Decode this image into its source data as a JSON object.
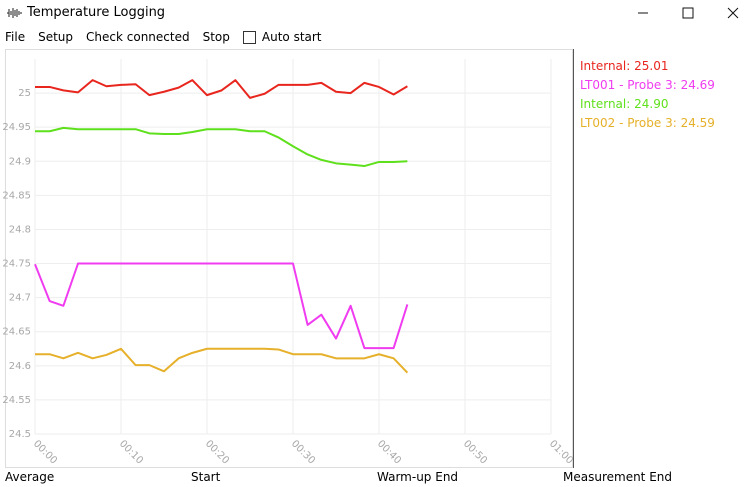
{
  "window": {
    "title": "Temperature Logging"
  },
  "menu": [
    "File",
    "Setup",
    "Check connected",
    "Stop"
  ],
  "auto_start": "Auto start",
  "chart_data": {
    "type": "line",
    "x": [
      0,
      1.7,
      3.3,
      5,
      6.7,
      8.3,
      10,
      11.7,
      13.3,
      15,
      16.7,
      18.3,
      20,
      21.7,
      23.3,
      25,
      26.7,
      28.3,
      30,
      31.7,
      33.3,
      35,
      36.7,
      38.3,
      40,
      41.7,
      43.3
    ],
    "series": [
      {
        "name": "Internal: 25.01",
        "color": "#e8261e",
        "values": [
          25.009,
          25.009,
          25.004,
          25.001,
          25.019,
          25.01,
          25.012,
          25.013,
          24.997,
          25.002,
          25.008,
          25.019,
          24.997,
          25.004,
          25.019,
          24.993,
          24.999,
          25.012,
          25.012,
          25.012,
          25.015,
          25.002,
          25.0,
          25.015,
          25.009,
          24.998,
          25.01
        ]
      },
      {
        "name": "LT001 - Probe 3: 24.69",
        "color": "#f03cf0",
        "values": [
          24.749,
          24.695,
          24.688,
          24.75,
          24.75,
          24.75,
          24.75,
          24.75,
          24.75,
          24.75,
          24.75,
          24.75,
          24.75,
          24.75,
          24.75,
          24.75,
          24.75,
          24.75,
          24.75,
          24.66,
          24.675,
          24.64,
          24.688,
          24.626,
          24.626,
          24.626,
          24.69
        ]
      },
      {
        "name": "Internal: 24.90",
        "color": "#5ee01c",
        "values": [
          24.944,
          24.944,
          24.949,
          24.947,
          24.947,
          24.947,
          24.947,
          24.947,
          24.941,
          24.94,
          24.94,
          24.943,
          24.947,
          24.947,
          24.947,
          24.944,
          24.944,
          24.935,
          24.922,
          24.91,
          24.902,
          24.897,
          24.895,
          24.893,
          24.899,
          24.899,
          24.9
        ]
      },
      {
        "name": "LT002 - Probe 3: 24.59",
        "color": "#e6b02a",
        "values": [
          24.617,
          24.617,
          24.611,
          24.619,
          24.611,
          24.616,
          24.625,
          24.601,
          24.601,
          24.592,
          24.611,
          24.619,
          24.625,
          24.625,
          24.625,
          24.625,
          24.625,
          24.624,
          24.617,
          24.617,
          24.617,
          24.611,
          24.611,
          24.611,
          24.617,
          24.611,
          24.59
        ]
      }
    ],
    "xlim": [
      0,
      60
    ],
    "ylim": [
      24.5,
      25.05
    ],
    "xticks": [
      {
        "value": 0,
        "label": "00:00"
      },
      {
        "value": 10,
        "label": "00:10"
      },
      {
        "value": 20,
        "label": "00:20"
      },
      {
        "value": 30,
        "label": "00:30"
      },
      {
        "value": 40,
        "label": "00:40"
      },
      {
        "value": 50,
        "label": "00:50"
      },
      {
        "value": 60,
        "label": "01:00"
      }
    ],
    "yticks": [
      24.5,
      24.55,
      24.6,
      24.65,
      24.7,
      24.75,
      24.8,
      24.85,
      24.9,
      24.95,
      25
    ],
    "grid": true
  },
  "status": [
    "Average",
    "Start",
    "Warm-up End",
    "Measurement End"
  ]
}
